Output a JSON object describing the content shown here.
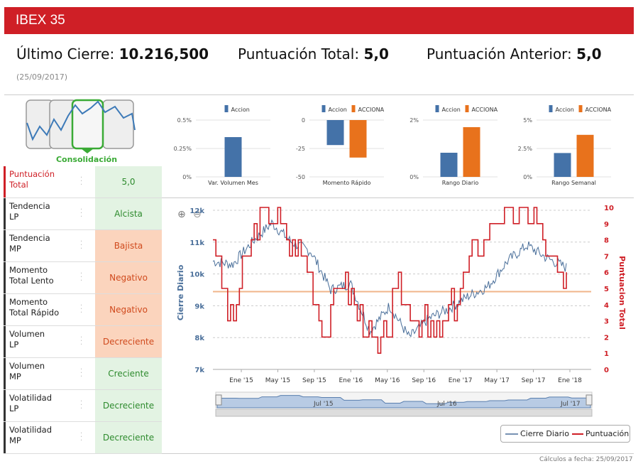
{
  "header": {
    "title": "IBEX 35"
  },
  "stats": {
    "last_close_label": "Último Cierre:",
    "last_close_value": "10.216,500",
    "total_label": "Puntuación Total:",
    "total_value": "5,0",
    "prev_label": "Puntuación Anterior:",
    "prev_value": "5,0",
    "date": "(25/09/2017)"
  },
  "phase": {
    "label": "Consolidación"
  },
  "rows": [
    {
      "label1": "Puntuación",
      "label2": "Total",
      "value": "5,0",
      "style": "g",
      "red": true
    },
    {
      "label1": "Tendencia",
      "label2": "LP",
      "value": "Alcista",
      "style": "g"
    },
    {
      "label1": "Tendencia",
      "label2": "MP",
      "value": "Bajista",
      "style": "o"
    },
    {
      "label1": "Momento",
      "label2": "Total Lento",
      "value": "Negativo",
      "style": "o"
    },
    {
      "label1": "Momento",
      "label2": "Total Rápido",
      "value": "Negativo",
      "style": "o"
    },
    {
      "label1": "Volumen",
      "label2": "LP",
      "value": "Decreciente",
      "style": "o"
    },
    {
      "label1": "Volumen",
      "label2": "MP",
      "value": "Creciente",
      "style": "g"
    },
    {
      "label1": "Volatilidad",
      "label2": "LP",
      "value": "Decreciente",
      "style": "g"
    },
    {
      "label1": "Volatilidad",
      "label2": "MP",
      "value": "Decreciente",
      "style": "g"
    }
  ],
  "colors": {
    "accion": "#4472a8",
    "acciona": "#e8721c",
    "red": "#cf1f26",
    "line": "#4a6f9a"
  },
  "chart_data": [
    {
      "type": "bar",
      "xlabel": "Var. Volumen Mes",
      "series": [
        {
          "name": "Accion",
          "values": [
            0.35
          ]
        }
      ],
      "yticks": [
        "0.5%",
        "0.25%",
        "0%"
      ],
      "ylim": [
        0,
        0.5
      ]
    },
    {
      "type": "bar",
      "xlabel": "Momento Rápido",
      "series": [
        {
          "name": "Accion",
          "values": [
            -22
          ]
        },
        {
          "name": "ACCIONA",
          "values": [
            -33
          ]
        }
      ],
      "yticks": [
        "0",
        "-25",
        "-50"
      ],
      "ylim": [
        -50,
        0
      ]
    },
    {
      "type": "bar",
      "xlabel": "Rango Diario",
      "series": [
        {
          "name": "Accion",
          "values": [
            0.85
          ]
        },
        {
          "name": "ACCIONA",
          "values": [
            1.75
          ]
        }
      ],
      "yticks": [
        "2%",
        "0%"
      ],
      "ylim": [
        0,
        2
      ]
    },
    {
      "type": "bar",
      "xlabel": "Rango Semanal",
      "series": [
        {
          "name": "Accion",
          "values": [
            2.1
          ]
        },
        {
          "name": "ACCIONA",
          "values": [
            3.7
          ]
        }
      ],
      "yticks": [
        "5%",
        "2.5%",
        "0%"
      ],
      "ylim": [
        0,
        5
      ]
    },
    {
      "type": "line",
      "ylabel": "Cierre Diario",
      "y2label": "Puntuacion Total",
      "yticks": [
        "12k",
        "11k",
        "10k",
        "9k",
        "8k",
        "7k"
      ],
      "ylim": [
        7000,
        12000
      ],
      "y2ticks": [
        "10",
        "9",
        "8",
        "7",
        "6",
        "5",
        "4",
        "3",
        "2",
        "1",
        "0"
      ],
      "y2lim": [
        0,
        10
      ],
      "xticks": [
        "Ene '15",
        "May '15",
        "Sep '15",
        "Ene '16",
        "May '16",
        "Sep '16",
        "Ene '17",
        "May '17",
        "Sep '17",
        "Ene '18"
      ],
      "navigator_ticks": [
        "Jul '15",
        "Jul '16",
        "Jul '17"
      ],
      "series": [
        {
          "name": "Cierre Diario",
          "x": [
            "Oct '14",
            "Ene '15",
            "Mar '15",
            "Abr '15",
            "Jun '15",
            "Ago '15",
            "Sep '15",
            "Dic '15",
            "Feb '16",
            "Abr '16",
            "Jun '16",
            "Ago '16",
            "Oct '16",
            "Dic '16",
            "Feb '17",
            "Abr '17",
            "May '17",
            "Jul '17",
            "Sep '17"
          ],
          "values": [
            10400,
            10300,
            11000,
            11600,
            11000,
            10700,
            9500,
            9700,
            8200,
            9000,
            8000,
            8600,
            8900,
            9300,
            9600,
            10400,
            10900,
            10500,
            10200
          ]
        },
        {
          "name": "Puntuación",
          "x": [
            "Oct '14",
            "Dic '14",
            "Feb '15",
            "Abr '15",
            "Jun '15",
            "Ago '15",
            "Sep '15",
            "Nov '15",
            "Dic '15",
            "Feb '16",
            "Abr '16",
            "Jun '16",
            "Ago '16",
            "Oct '16",
            "Dic '16",
            "Feb '17",
            "Abr '17",
            "Jun '17",
            "Ago '17",
            "Sep '17"
          ],
          "values": [
            8,
            3,
            8,
            10,
            8,
            7,
            2,
            6,
            3,
            1,
            5,
            3,
            2,
            4,
            7,
            9,
            10,
            10,
            7,
            5
          ]
        }
      ],
      "reference_value": 4.8
    }
  ],
  "legend": {
    "line": "Cierre Diario",
    "score": "Puntuación"
  },
  "footer": "Cálculos a fecha: 25/09/2017"
}
